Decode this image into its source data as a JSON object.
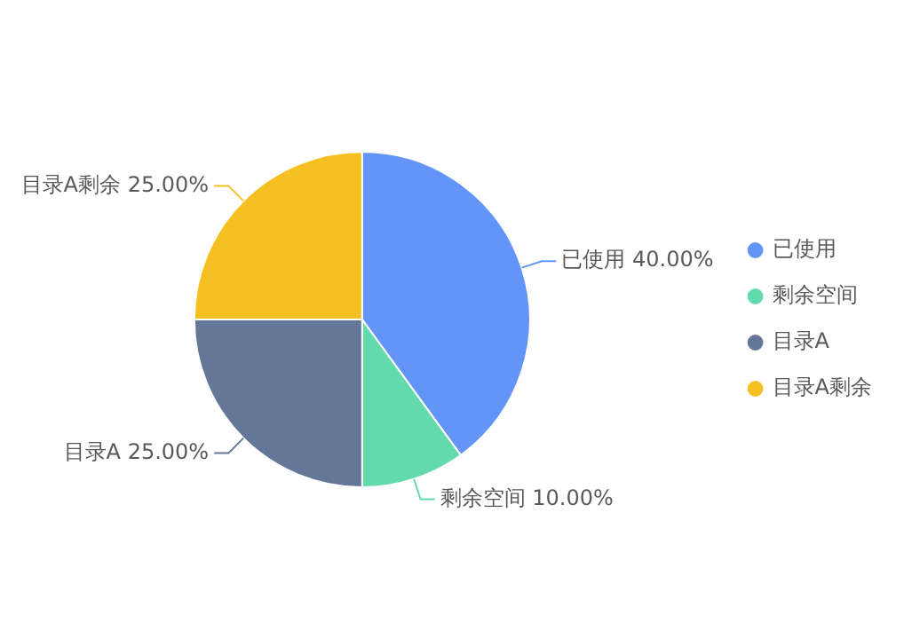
{
  "chart_data": {
    "type": "pie",
    "categories": [
      "已使用",
      "剩余空间",
      "目录A",
      "目录A剩余"
    ],
    "values": [
      40,
      10,
      25,
      25
    ],
    "colors": [
      "#6395f9",
      "#62daab",
      "#657798",
      "#f6c022"
    ],
    "value_labels": [
      "已使用 40.00%",
      "剩余空间 10.00%",
      "目录A 25.00%",
      "目录A剩余 25.00%"
    ],
    "legend": "right"
  }
}
